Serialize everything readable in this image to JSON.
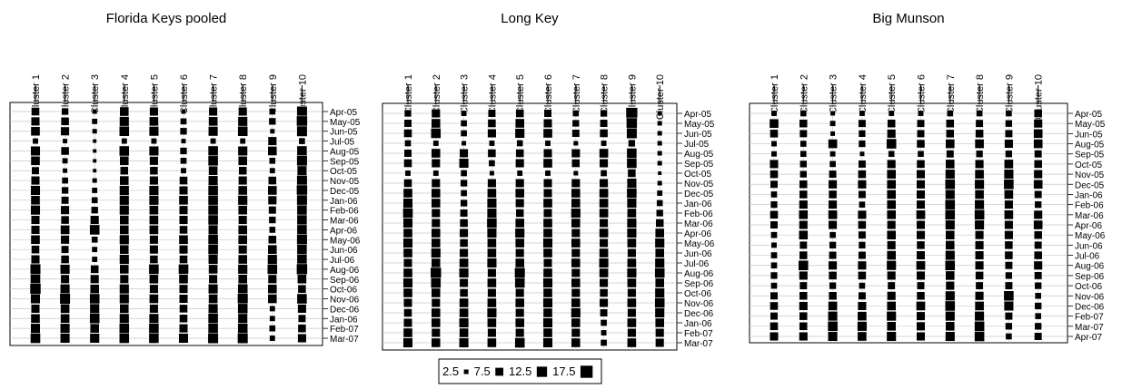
{
  "chart_data": {
    "type": "bubble-matrix",
    "clusters": [
      "Cluster 1",
      "Cluster 2",
      "Cluster 3",
      "Cluster 4",
      "Cluster 5",
      "Cluster 6",
      "Cluster 7",
      "Cluster 8",
      "Cluster 9",
      "Cluster 10"
    ],
    "legend": {
      "values": [
        2.5,
        7.5,
        12.5,
        17.5
      ],
      "labels": [
        "2.5",
        "7.5",
        "12.5",
        "17.5"
      ]
    },
    "panels": [
      {
        "title": "Florida Keys pooled",
        "months": [
          "Apr-05",
          "May-05",
          "Jun-05",
          "Jul-05",
          "Aug-05",
          "Sep-05",
          "Oct-05",
          "Nov-05",
          "Dec-05",
          "Jan-06",
          "Feb-06",
          "Mar-06",
          "Apr-06",
          "May-06",
          "Jun-06",
          "Jul-06",
          "Aug-06",
          "Sep-06",
          "Oct-06",
          "Nov-06",
          "Dec-06",
          "Jan-06",
          "Feb-07",
          "Mar-07"
        ],
        "values": [
          [
            8,
            6,
            3,
            10,
            9,
            3,
            9,
            9,
            5,
            13
          ],
          [
            9,
            8,
            4,
            11,
            10,
            5,
            10,
            11,
            6,
            14
          ],
          [
            10,
            9,
            3,
            12,
            11,
            6,
            11,
            12,
            3,
            13
          ],
          [
            4,
            3,
            2,
            4,
            4,
            3,
            4,
            4,
            9,
            5
          ],
          [
            11,
            8,
            2,
            12,
            11,
            6,
            12,
            11,
            10,
            12
          ],
          [
            10,
            4,
            2,
            10,
            9,
            5,
            12,
            10,
            5,
            13
          ],
          [
            7,
            3,
            2,
            8,
            8,
            4,
            10,
            8,
            4,
            11
          ],
          [
            9,
            5,
            3,
            10,
            9,
            8,
            11,
            9,
            8,
            13
          ],
          [
            11,
            6,
            4,
            11,
            11,
            9,
            12,
            10,
            10,
            14
          ],
          [
            10,
            7,
            5,
            11,
            11,
            10,
            12,
            11,
            9,
            13
          ],
          [
            11,
            9,
            6,
            11,
            10,
            9,
            12,
            10,
            7,
            12
          ],
          [
            9,
            8,
            9,
            10,
            10,
            9,
            12,
            9,
            6,
            12
          ],
          [
            9,
            10,
            12,
            10,
            10,
            8,
            11,
            10,
            5,
            12
          ],
          [
            10,
            9,
            5,
            11,
            9,
            10,
            12,
            10,
            8,
            13
          ],
          [
            8,
            7,
            4,
            10,
            9,
            9,
            12,
            9,
            10,
            12
          ],
          [
            9,
            8,
            4,
            11,
            8,
            8,
            11,
            10,
            11,
            12
          ],
          [
            13,
            11,
            8,
            10,
            12,
            12,
            10,
            11,
            12,
            14
          ],
          [
            12,
            9,
            9,
            9,
            10,
            10,
            9,
            10,
            9,
            10
          ],
          [
            14,
            11,
            10,
            11,
            9,
            9,
            11,
            12,
            10,
            8
          ],
          [
            11,
            13,
            12,
            11,
            10,
            9,
            10,
            13,
            10,
            12
          ],
          [
            9,
            10,
            11,
            10,
            9,
            8,
            11,
            12,
            4,
            9
          ],
          [
            10,
            10,
            12,
            11,
            11,
            8,
            12,
            11,
            4,
            7
          ],
          [
            11,
            11,
            10,
            12,
            12,
            9,
            12,
            12,
            5,
            8
          ],
          [
            12,
            11,
            11,
            12,
            12,
            11,
            13,
            13,
            4,
            9
          ]
        ]
      },
      {
        "title": "Long Key",
        "months": [
          "Apr-05",
          "May-05",
          "Jun-05",
          "Jul-05",
          "Aug-05",
          "Sep-05",
          "Oct-05",
          "Nov-05",
          "Dec-05",
          "Jan-06",
          "Feb-06",
          "Mar-06",
          "Apr-06",
          "May-06",
          "Jun-06",
          "Jul-06",
          "Aug-06",
          "Sep-06",
          "Oct-06",
          "Nov-06",
          "Dec-06",
          "Jan-06",
          "Feb-07",
          "Mar-07"
        ],
        "values": [
          [
            6,
            9,
            4,
            7,
            8,
            7,
            5,
            6,
            16,
            3
          ],
          [
            7,
            10,
            5,
            8,
            10,
            9,
            6,
            7,
            14,
            3
          ],
          [
            8,
            12,
            5,
            9,
            11,
            10,
            7,
            8,
            13,
            3
          ],
          [
            5,
            4,
            3,
            4,
            5,
            4,
            3,
            4,
            6,
            3
          ],
          [
            7,
            10,
            9,
            8,
            8,
            9,
            9,
            10,
            12,
            3
          ],
          [
            8,
            9,
            11,
            5,
            9,
            10,
            8,
            9,
            12,
            3
          ],
          [
            4,
            4,
            5,
            3,
            4,
            4,
            3,
            5,
            8,
            2
          ],
          [
            8,
            9,
            6,
            9,
            9,
            9,
            9,
            9,
            11,
            3
          ],
          [
            10,
            10,
            5,
            10,
            10,
            9,
            10,
            10,
            12,
            4
          ],
          [
            11,
            10,
            6,
            11,
            9,
            10,
            10,
            10,
            11,
            5
          ],
          [
            12,
            9,
            7,
            11,
            8,
            9,
            11,
            10,
            10,
            6
          ],
          [
            11,
            9,
            8,
            12,
            10,
            10,
            10,
            9,
            11,
            8
          ],
          [
            10,
            10,
            9,
            11,
            11,
            10,
            9,
            10,
            11,
            10
          ],
          [
            11,
            10,
            8,
            10,
            10,
            11,
            10,
            9,
            10,
            11
          ],
          [
            10,
            11,
            9,
            10,
            9,
            10,
            9,
            10,
            9,
            10
          ],
          [
            9,
            10,
            10,
            11,
            10,
            9,
            10,
            11,
            10,
            11
          ],
          [
            10,
            14,
            11,
            9,
            13,
            10,
            9,
            10,
            11,
            12
          ],
          [
            11,
            12,
            9,
            10,
            12,
            11,
            10,
            9,
            10,
            10
          ],
          [
            10,
            10,
            8,
            9,
            9,
            10,
            9,
            8,
            9,
            11
          ],
          [
            9,
            9,
            10,
            10,
            10,
            11,
            10,
            9,
            10,
            12
          ],
          [
            8,
            10,
            10,
            11,
            9,
            10,
            11,
            7,
            9,
            11
          ],
          [
            9,
            10,
            11,
            10,
            10,
            11,
            10,
            5,
            10,
            10
          ],
          [
            10,
            9,
            10,
            9,
            9,
            10,
            9,
            4,
            9,
            9
          ],
          [
            11,
            10,
            11,
            10,
            12,
            11,
            10,
            5,
            10,
            9
          ]
        ]
      },
      {
        "title": "Big Munson",
        "months": [
          "Apr-05",
          "May-05",
          "Jun-05",
          "Aug-05",
          "Sep-05",
          "Oct-05",
          "Nov-05",
          "Dec-05",
          "Jan-06",
          "Feb-06",
          "Mar-06",
          "Apr-06",
          "May-06",
          "Jun-06",
          "Jul-06",
          "Aug-06",
          "Sep-06",
          "Oct-06",
          "Nov-06",
          "Dec-06",
          "Feb-07",
          "Mar-07",
          "Apr-07"
        ],
        "values": [
          [
            4,
            5,
            3,
            4,
            4,
            4,
            5,
            5,
            5,
            8
          ],
          [
            10,
            8,
            4,
            7,
            8,
            7,
            8,
            7,
            6,
            9
          ],
          [
            8,
            7,
            3,
            6,
            9,
            7,
            8,
            8,
            7,
            10
          ],
          [
            4,
            5,
            10,
            6,
            12,
            8,
            10,
            10,
            9,
            10
          ],
          [
            4,
            5,
            4,
            3,
            5,
            5,
            7,
            6,
            6,
            7
          ],
          [
            9,
            6,
            5,
            7,
            9,
            8,
            10,
            9,
            10,
            8
          ],
          [
            8,
            6,
            7,
            8,
            10,
            9,
            11,
            10,
            11,
            9
          ],
          [
            7,
            8,
            9,
            9,
            10,
            9,
            12,
            11,
            12,
            10
          ],
          [
            5,
            8,
            8,
            7,
            10,
            9,
            11,
            10,
            10,
            7
          ],
          [
            6,
            9,
            9,
            5,
            10,
            9,
            12,
            11,
            9,
            6
          ],
          [
            8,
            10,
            10,
            9,
            10,
            10,
            12,
            12,
            10,
            9
          ],
          [
            7,
            9,
            9,
            8,
            9,
            9,
            11,
            11,
            9,
            10
          ],
          [
            5,
            10,
            5,
            7,
            10,
            9,
            10,
            9,
            9,
            8
          ],
          [
            4,
            7,
            6,
            6,
            9,
            8,
            10,
            9,
            8,
            7
          ],
          [
            5,
            8,
            7,
            7,
            10,
            9,
            11,
            9,
            8,
            8
          ],
          [
            5,
            12,
            9,
            9,
            11,
            10,
            12,
            9,
            7,
            9
          ],
          [
            6,
            9,
            8,
            8,
            9,
            9,
            10,
            8,
            6,
            7
          ],
          [
            5,
            7,
            6,
            5,
            7,
            7,
            9,
            7,
            7,
            6
          ],
          [
            7,
            8,
            8,
            7,
            9,
            8,
            11,
            9,
            12,
            5
          ],
          [
            8,
            9,
            10,
            9,
            10,
            10,
            12,
            10,
            11,
            6
          ],
          [
            7,
            8,
            11,
            10,
            11,
            9,
            11,
            11,
            7,
            5
          ],
          [
            8,
            8,
            12,
            11,
            10,
            9,
            10,
            12,
            6,
            6
          ],
          [
            9,
            9,
            11,
            10,
            11,
            9,
            11,
            12,
            5,
            7
          ]
        ]
      }
    ]
  }
}
